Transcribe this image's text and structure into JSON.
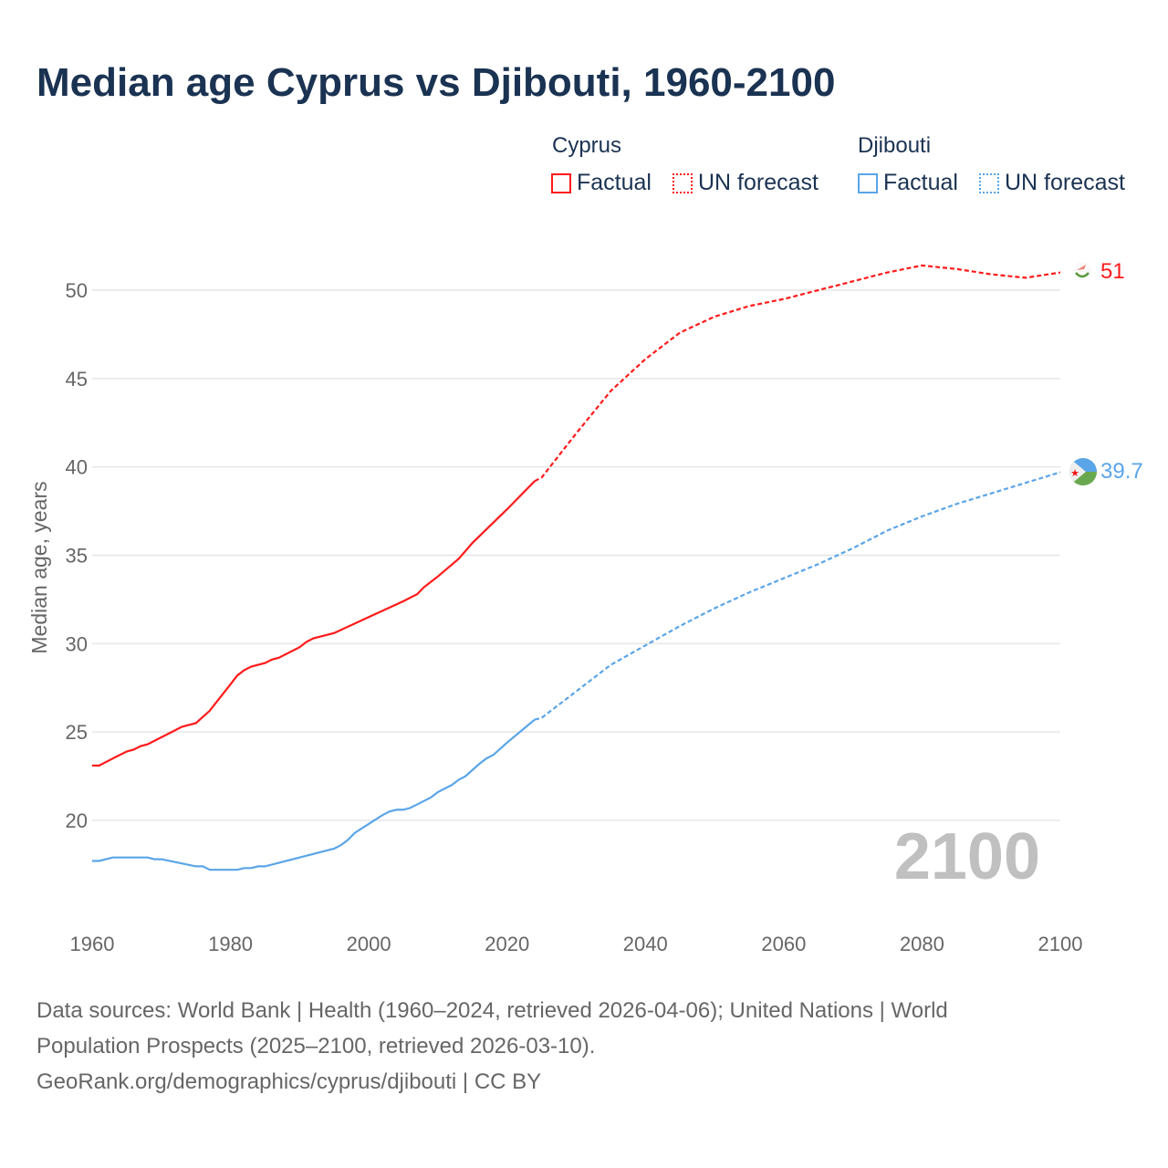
{
  "title": "Median age Cyprus vs Djibouti, 1960-2100",
  "legend": {
    "cyprus": "Cyprus",
    "djibouti": "Djibouti",
    "factual": "Factual",
    "forecast": "UN forecast"
  },
  "colors": {
    "cyprus": "#ff1a1a",
    "djibouti": "#5aa5e8"
  },
  "footer": {
    "line1": "Data sources: World Bank | Health (1960–2024, retrieved 2026-04-06); United Nations | World",
    "line2": "Population Prospects (2025–2100, retrieved 2026-03-10).",
    "line3": "GeoRank.org/demographics/cyprus/djibouti | CC BY"
  },
  "chart_data": {
    "type": "line",
    "title": "Median age Cyprus vs Djibouti, 1960-2100",
    "ylabel": "Median age, years",
    "xlabel": "",
    "xlim": [
      1960,
      2100
    ],
    "ylim": [
      15,
      53
    ],
    "xticks": [
      1960,
      1980,
      2000,
      2020,
      2040,
      2060,
      2080,
      2100
    ],
    "yticks": [
      20,
      25,
      30,
      35,
      40,
      45,
      50
    ],
    "year_label": "2100",
    "end_labels": {
      "cyprus": "51",
      "djibouti": "39.7"
    },
    "series": [
      {
        "name": "Cyprus",
        "factual": [
          [
            1960,
            23.1
          ],
          [
            1961,
            23.1
          ],
          [
            1963,
            23.5
          ],
          [
            1965,
            23.9
          ],
          [
            1966,
            24.0
          ],
          [
            1967,
            24.2
          ],
          [
            1968,
            24.3
          ],
          [
            1970,
            24.7
          ],
          [
            1973,
            25.3
          ],
          [
            1975,
            25.5
          ],
          [
            1977,
            26.2
          ],
          [
            1978,
            26.7
          ],
          [
            1979,
            27.2
          ],
          [
            1980,
            27.7
          ],
          [
            1981,
            28.2
          ],
          [
            1982,
            28.5
          ],
          [
            1983,
            28.7
          ],
          [
            1985,
            28.9
          ],
          [
            1986,
            29.1
          ],
          [
            1987,
            29.2
          ],
          [
            1990,
            29.8
          ],
          [
            1991,
            30.1
          ],
          [
            1992,
            30.3
          ],
          [
            1995,
            30.6
          ],
          [
            2000,
            31.5
          ],
          [
            2005,
            32.4
          ],
          [
            2007,
            32.8
          ],
          [
            2008,
            33.2
          ],
          [
            2009,
            33.5
          ],
          [
            2010,
            33.8
          ],
          [
            2013,
            34.8
          ],
          [
            2015,
            35.7
          ],
          [
            2020,
            37.6
          ],
          [
            2024,
            39.2
          ]
        ],
        "forecast": [
          [
            2024,
            39.2
          ],
          [
            2025,
            39.4
          ],
          [
            2030,
            41.9
          ],
          [
            2035,
            44.3
          ],
          [
            2040,
            46.1
          ],
          [
            2045,
            47.6
          ],
          [
            2050,
            48.5
          ],
          [
            2055,
            49.1
          ],
          [
            2060,
            49.5
          ],
          [
            2065,
            50.0
          ],
          [
            2070,
            50.5
          ],
          [
            2075,
            51.0
          ],
          [
            2080,
            51.4
          ],
          [
            2085,
            51.2
          ],
          [
            2090,
            50.9
          ],
          [
            2095,
            50.7
          ],
          [
            2100,
            51.0
          ]
        ]
      },
      {
        "name": "Djibouti",
        "factual": [
          [
            1960,
            17.7
          ],
          [
            1961,
            17.7
          ],
          [
            1963,
            17.9
          ],
          [
            1968,
            17.9
          ],
          [
            1969,
            17.8
          ],
          [
            1970,
            17.8
          ],
          [
            1975,
            17.4
          ],
          [
            1976,
            17.4
          ],
          [
            1977,
            17.2
          ],
          [
            1981,
            17.2
          ],
          [
            1982,
            17.3
          ],
          [
            1983,
            17.3
          ],
          [
            1984,
            17.4
          ],
          [
            1985,
            17.4
          ],
          [
            1990,
            17.9
          ],
          [
            1995,
            18.4
          ],
          [
            1996,
            18.6
          ],
          [
            1997,
            18.9
          ],
          [
            1998,
            19.3
          ],
          [
            2000,
            19.8
          ],
          [
            2002,
            20.3
          ],
          [
            2003,
            20.5
          ],
          [
            2004,
            20.6
          ],
          [
            2005,
            20.6
          ],
          [
            2006,
            20.7
          ],
          [
            2008,
            21.1
          ],
          [
            2009,
            21.3
          ],
          [
            2010,
            21.6
          ],
          [
            2011,
            21.8
          ],
          [
            2012,
            22.0
          ],
          [
            2013,
            22.3
          ],
          [
            2014,
            22.5
          ],
          [
            2016,
            23.2
          ],
          [
            2017,
            23.5
          ],
          [
            2018,
            23.7
          ],
          [
            2020,
            24.4
          ],
          [
            2024,
            25.7
          ]
        ],
        "forecast": [
          [
            2024,
            25.7
          ],
          [
            2025,
            25.8
          ],
          [
            2030,
            27.3
          ],
          [
            2035,
            28.8
          ],
          [
            2040,
            29.9
          ],
          [
            2045,
            31.0
          ],
          [
            2050,
            32.0
          ],
          [
            2055,
            32.9
          ],
          [
            2060,
            33.7
          ],
          [
            2065,
            34.5
          ],
          [
            2070,
            35.4
          ],
          [
            2075,
            36.4
          ],
          [
            2080,
            37.2
          ],
          [
            2085,
            37.9
          ],
          [
            2090,
            38.5
          ],
          [
            2095,
            39.1
          ],
          [
            2100,
            39.7
          ]
        ]
      }
    ]
  }
}
